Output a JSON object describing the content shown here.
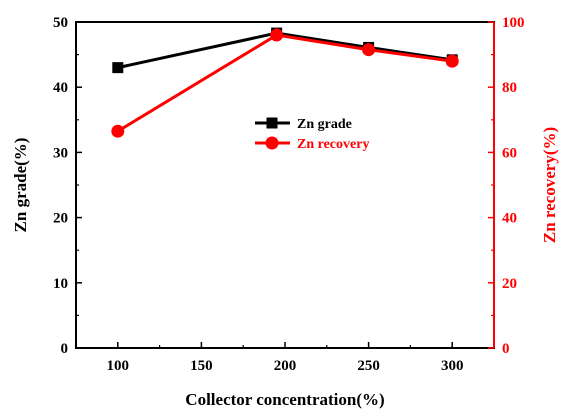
{
  "chart_data": {
    "type": "line",
    "x": [
      100,
      195,
      250,
      300
    ],
    "xlabel": "Collector concentration(%)",
    "ylabel": "Zn grade(%)",
    "y2label": "Zn recovery(%)",
    "xlim": [
      75,
      325
    ],
    "ylim": [
      0,
      50
    ],
    "y2lim": [
      0,
      100
    ],
    "xticks": [
      "100",
      "150",
      "200",
      "250",
      "300"
    ],
    "yticks": [
      "0",
      "10",
      "20",
      "30",
      "40",
      "50"
    ],
    "y2ticks": [
      "0",
      "20",
      "40",
      "60",
      "80",
      "100"
    ],
    "grid": false,
    "legend_position": "center",
    "series": [
      {
        "name": "Zn grade",
        "axis": "left",
        "marker": "square",
        "color": "#000000",
        "values": [
          43.0,
          48.3,
          46.1,
          44.2
        ]
      },
      {
        "name": "Zn  recovery",
        "axis": "right",
        "marker": "circle",
        "color": "#ff0000",
        "values": [
          66.5,
          96.0,
          91.5,
          88.0
        ]
      }
    ]
  }
}
